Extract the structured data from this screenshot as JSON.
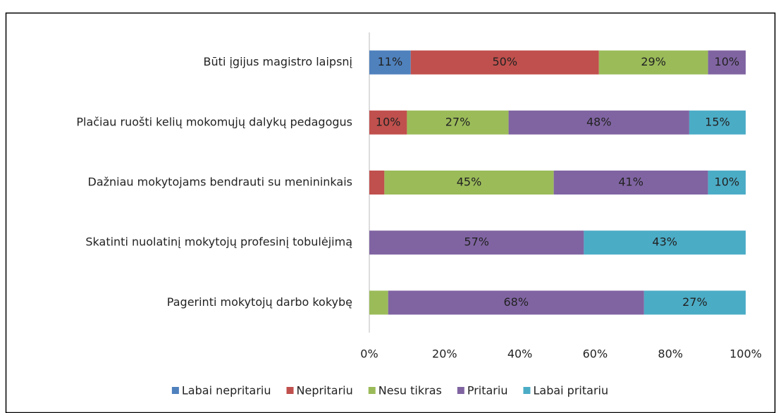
{
  "chart_data": {
    "type": "stacked_barh",
    "categories": [
      "Būti įgijus magistro laipsnį",
      "Plačiau ruošti kelių mokomųjų dalykų pedagogus",
      "Dažniau mokytojams bendrauti su menininkais",
      "Skatinti nuolatinį mokytojų profesinį tobulėjimą",
      "Pagerinti mokytojų darbo kokybę"
    ],
    "series": [
      {
        "name": "Labai nepritariu",
        "color": "#4f81bd",
        "values": [
          11,
          0,
          0,
          0,
          0
        ],
        "value_labels": [
          "11%",
          null,
          null,
          null,
          null
        ]
      },
      {
        "name": "Nepritariu",
        "color": "#c0504d",
        "values": [
          50,
          10,
          4,
          0,
          0
        ],
        "value_labels": [
          "50%",
          "10%",
          null,
          null,
          null
        ]
      },
      {
        "name": "Nesu tikras",
        "color": "#9bbb59",
        "values": [
          29,
          27,
          45,
          0,
          5
        ],
        "value_labels": [
          "29%",
          "27%",
          "45%",
          null,
          null
        ]
      },
      {
        "name": "Pritariu",
        "color": "#8064a2",
        "values": [
          10,
          48,
          41,
          57,
          68
        ],
        "value_labels": [
          "10%",
          "48%",
          "41%",
          "57%",
          "68%"
        ]
      },
      {
        "name": "Labai pritariu",
        "color": "#4bacc6",
        "values": [
          0,
          15,
          10,
          43,
          27
        ],
        "value_labels": [
          null,
          "15%",
          "10%",
          "43%",
          "27%"
        ]
      }
    ],
    "xlim": [
      0,
      100
    ],
    "xticks": [
      {
        "value": 0,
        "label": "0%"
      },
      {
        "value": 20,
        "label": "20%"
      },
      {
        "value": 40,
        "label": "40%"
      },
      {
        "value": 60,
        "label": "60%"
      },
      {
        "value": 80,
        "label": "80%"
      },
      {
        "value": 100,
        "label": "100%"
      }
    ],
    "legend": "bottom"
  }
}
